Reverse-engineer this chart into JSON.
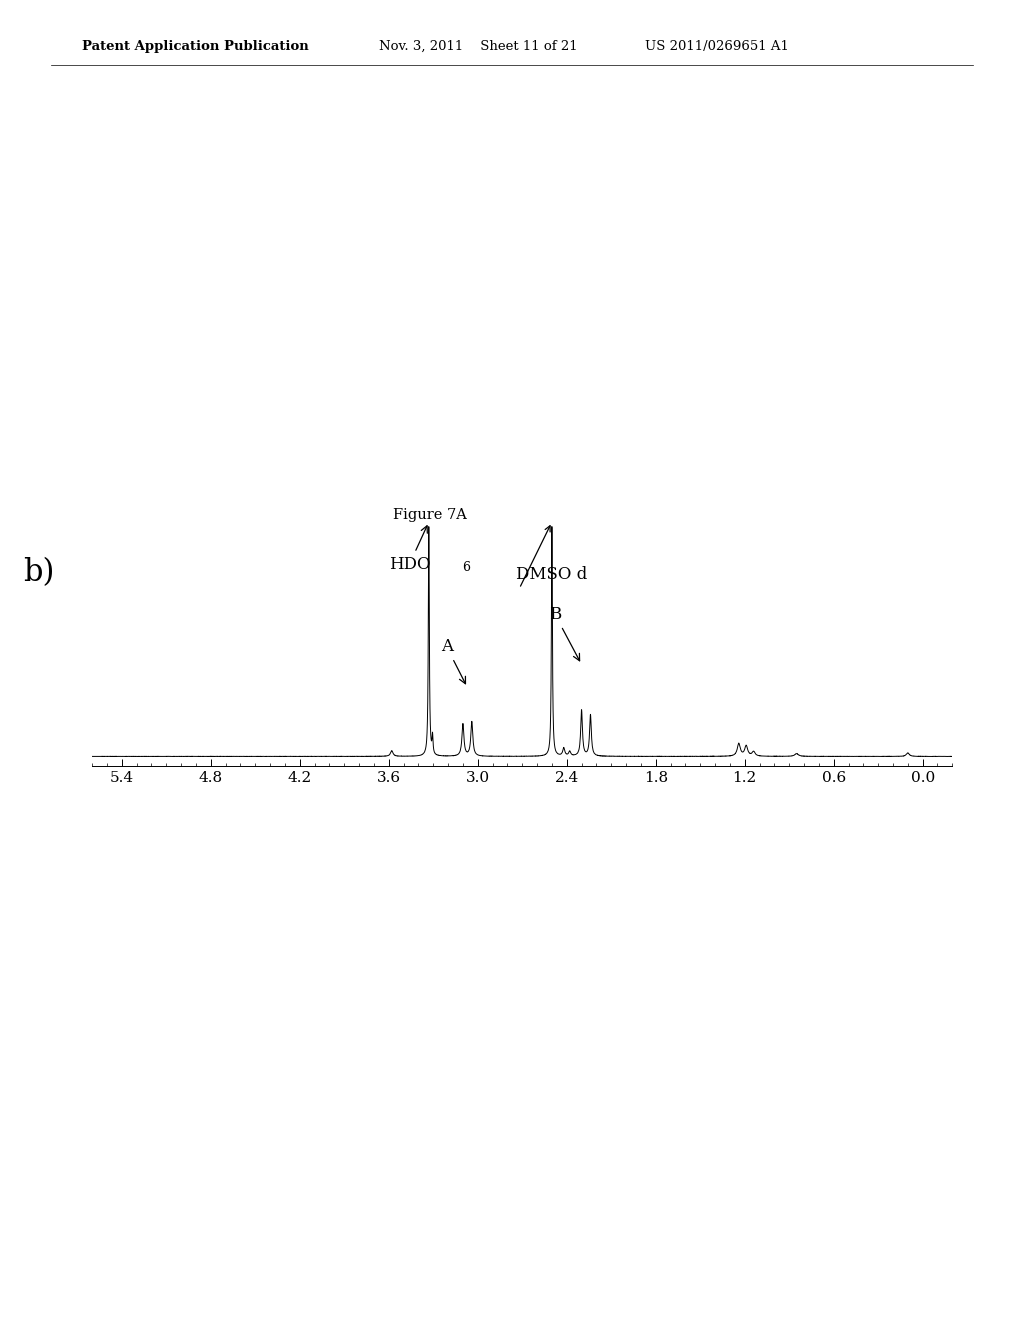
{
  "title": "Figure 7A",
  "header_left": "Patent Application Publication",
  "header_mid": "Nov. 3, 2011    Sheet 11 of 21",
  "header_right": "US 2011/0269651 A1",
  "panel_label": "b)",
  "label_HDO": "HDO",
  "label_DMSO": "DMSO d",
  "label_DMSO_sup": "6",
  "label_A": "A",
  "label_B": "B",
  "x_ticks": [
    5.4,
    4.8,
    4.2,
    3.6,
    3.0,
    2.4,
    1.8,
    1.2,
    0.6,
    0.0
  ],
  "x_min": 5.6,
  "x_max": -0.2,
  "background_color": "#ffffff",
  "line_color": "#000000",
  "HDO_ppm": 3.33,
  "DMSO_ppm": 2.5,
  "A_ppm": 3.08,
  "B_ppm": 2.27
}
